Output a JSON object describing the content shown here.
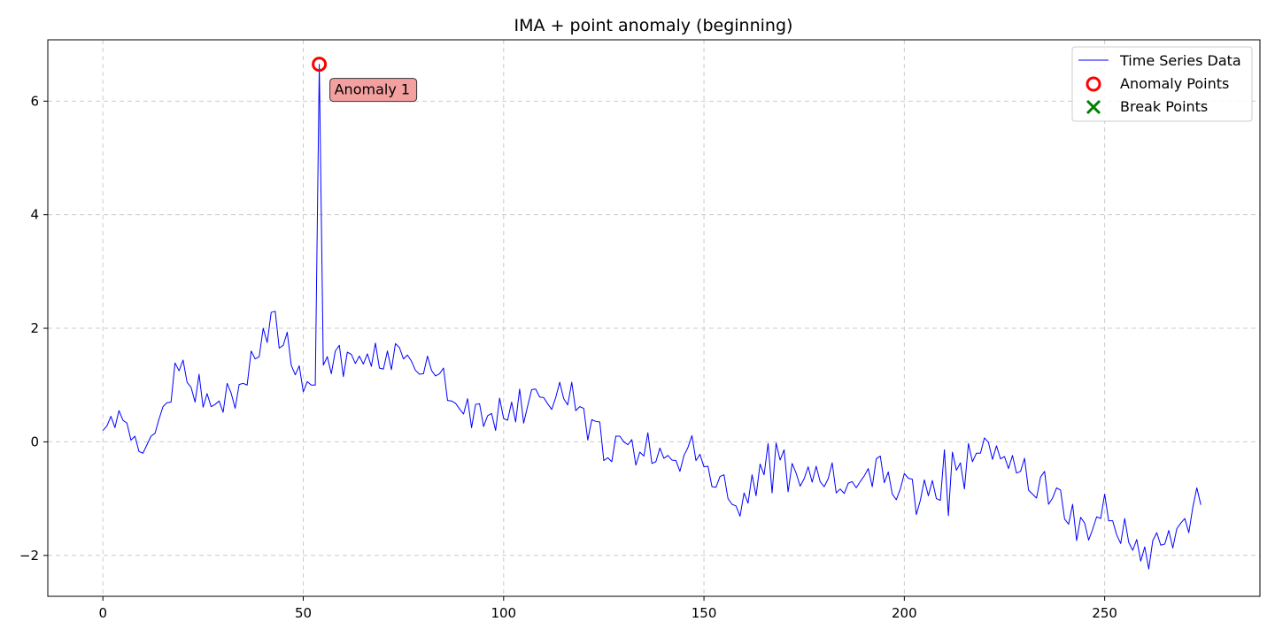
{
  "chart_data": {
    "type": "line",
    "title": "IMA + point anomaly (beginning)",
    "xlabel": "",
    "ylabel": "",
    "xlim": [
      -13.75,
      288.75
    ],
    "ylim": [
      -2.72,
      7.08
    ],
    "xticks": [
      0,
      50,
      100,
      150,
      200,
      250
    ],
    "yticks": [
      -2,
      0,
      2,
      4,
      6
    ],
    "grid": true,
    "legend_position": "top-right",
    "colors": {
      "series": "#0000ff",
      "anomaly": "#ff0000",
      "break": "#008000",
      "annotation_fill": "#f4a0a0",
      "grid": "#cccccc"
    },
    "series": [
      {
        "name": "Time Series Data",
        "x_start": 0,
        "values": [
          0.2,
          0.28,
          0.45,
          0.25,
          0.55,
          0.38,
          0.33,
          0.03,
          0.1,
          -0.17,
          -0.2,
          -0.05,
          0.1,
          0.15,
          0.4,
          0.62,
          0.69,
          0.7,
          1.39,
          1.25,
          1.44,
          1.05,
          0.96,
          0.7,
          1.19,
          0.61,
          0.85,
          0.62,
          0.66,
          0.72,
          0.52,
          1.03,
          0.86,
          0.59,
          1.01,
          1.03,
          1.0,
          1.6,
          1.46,
          1.5,
          2.0,
          1.75,
          2.28,
          2.3,
          1.65,
          1.7,
          1.93,
          1.35,
          1.18,
          1.34,
          0.88,
          1.06,
          1.0,
          1.0,
          6.65,
          1.35,
          1.5,
          1.2,
          1.6,
          1.7,
          1.15,
          1.58,
          1.54,
          1.38,
          1.51,
          1.37,
          1.55,
          1.33,
          1.74,
          1.3,
          1.28,
          1.6,
          1.27,
          1.73,
          1.66,
          1.46,
          1.53,
          1.42,
          1.26,
          1.19,
          1.2,
          1.51,
          1.26,
          1.16,
          1.2,
          1.3,
          0.73,
          0.72,
          0.68,
          0.58,
          0.49,
          0.76,
          0.25,
          0.66,
          0.67,
          0.27,
          0.46,
          0.5,
          0.2,
          0.77,
          0.41,
          0.38,
          0.7,
          0.35,
          0.93,
          0.33,
          0.63,
          0.92,
          0.93,
          0.79,
          0.78,
          0.67,
          0.57,
          0.78,
          1.05,
          0.76,
          0.65,
          1.05,
          0.55,
          0.62,
          0.59,
          0.03,
          0.39,
          0.36,
          0.35,
          -0.33,
          -0.28,
          -0.35,
          0.1,
          0.1,
          0.0,
          -0.05,
          0.04,
          -0.41,
          -0.18,
          -0.25,
          0.16,
          -0.38,
          -0.35,
          -0.11,
          -0.29,
          -0.24,
          -0.32,
          -0.33,
          -0.52,
          -0.24,
          -0.1,
          0.11,
          -0.33,
          -0.22,
          -0.44,
          -0.43,
          -0.79,
          -0.8,
          -0.61,
          -0.58,
          -1.0,
          -1.1,
          -1.13,
          -1.31,
          -0.9,
          -1.08,
          -0.58,
          -0.95,
          -0.39,
          -0.58,
          -0.03,
          -0.9,
          -0.02,
          -0.32,
          -0.14,
          -0.88,
          -0.38,
          -0.55,
          -0.78,
          -0.65,
          -0.44,
          -0.71,
          -0.43,
          -0.7,
          -0.79,
          -0.65,
          -0.37,
          -0.9,
          -0.83,
          -0.91,
          -0.73,
          -0.7,
          -0.81,
          -0.7,
          -0.6,
          -0.47,
          -0.79,
          -0.3,
          -0.25,
          -0.72,
          -0.53,
          -0.92,
          -1.02,
          -0.83,
          -0.56,
          -0.64,
          -0.66,
          -1.28,
          -1.03,
          -0.67,
          -0.95,
          -0.68,
          -1.0,
          -1.03,
          -0.14,
          -1.3,
          -0.18,
          -0.5,
          -0.37,
          -0.83,
          -0.03,
          -0.35,
          -0.2,
          -0.2,
          0.07,
          -0.01,
          -0.31,
          -0.07,
          -0.3,
          -0.26,
          -0.47,
          -0.24,
          -0.55,
          -0.52,
          -0.29,
          -0.85,
          -0.92,
          -0.99,
          -0.62,
          -0.52,
          -1.1,
          -0.99,
          -0.81,
          -0.85,
          -1.36,
          -1.45,
          -1.1,
          -1.74,
          -1.33,
          -1.43,
          -1.73,
          -1.54,
          -1.32,
          -1.35,
          -0.92,
          -1.39,
          -1.39,
          -1.64,
          -1.79,
          -1.35,
          -1.77,
          -1.91,
          -1.72,
          -2.1,
          -1.85,
          -2.24,
          -1.74,
          -1.6,
          -1.82,
          -1.8,
          -1.56,
          -1.87,
          -1.53,
          -1.43,
          -1.35,
          -1.6,
          -1.15,
          -0.81,
          -1.11
        ]
      },
      {
        "name": "Anomaly Points",
        "points": [
          {
            "x": 54,
            "y": 6.65
          }
        ]
      },
      {
        "name": "Break Points",
        "points": []
      }
    ],
    "annotations": [
      {
        "text": "Anomaly 1",
        "x": 54,
        "y": 6.65
      }
    ]
  }
}
